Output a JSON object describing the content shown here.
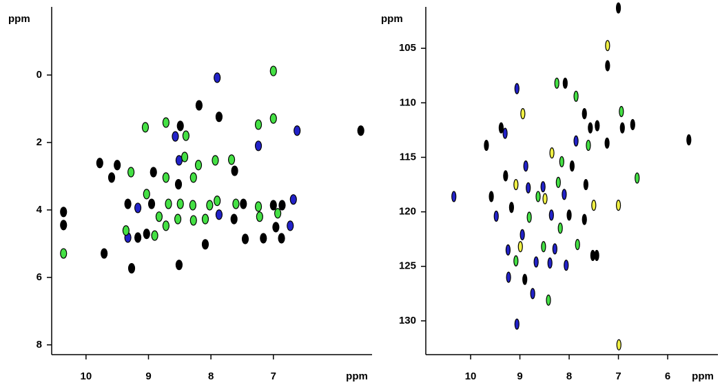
{
  "chart_data": [
    {
      "type": "scatter",
      "xlabel": "ppm",
      "ylabel": "ppm",
      "xlim": [
        10.55,
        5.42
      ],
      "ylim": [
        8.29,
        -2.02
      ],
      "xticks": [
        10,
        9,
        8,
        7
      ],
      "yticks": [
        0,
        2,
        4,
        6,
        8
      ],
      "series": [
        {
          "color": "#000000",
          "x": [
            5.6,
            7.87,
            8.19,
            8.49,
            7.62,
            9.5,
            9.59,
            9.78,
            8.92,
            8.52,
            8.95,
            7.48,
            7.0,
            6.86,
            9.33,
            7.63,
            6.96,
            9.03,
            9.17,
            7.45,
            7.16,
            6.87,
            10.36,
            10.36,
            9.71,
            9.27,
            8.51,
            8.09
          ],
          "y": [
            1.65,
            1.24,
            0.9,
            1.51,
            2.84,
            2.67,
            3.04,
            2.61,
            2.88,
            3.24,
            3.82,
            3.82,
            3.86,
            3.86,
            3.82,
            4.27,
            4.51,
            4.71,
            4.82,
            4.86,
            4.84,
            4.84,
            4.06,
            4.45,
            5.29,
            5.73,
            5.63,
            5.02
          ]
        },
        {
          "color": "#2222c8",
          "x": [
            7.9,
            6.62,
            7.24,
            8.57,
            8.51,
            6.68,
            9.17,
            7.87,
            6.73,
            9.33
          ],
          "y": [
            0.08,
            1.65,
            2.1,
            1.82,
            2.53,
            3.69,
            3.94,
            4.14,
            4.47,
            4.82
          ]
        },
        {
          "color": "#44e044",
          "x": [
            7.0,
            7.0,
            7.24,
            9.05,
            8.72,
            8.4,
            8.42,
            8.2,
            7.93,
            7.67,
            9.28,
            8.28,
            8.72,
            9.03,
            8.68,
            8.49,
            8.29,
            8.02,
            7.9,
            7.6,
            7.24,
            8.83,
            8.53,
            8.28,
            8.09,
            6.93,
            7.22,
            8.72,
            8.9,
            9.36,
            10.36
          ],
          "y": [
            -0.12,
            1.29,
            1.47,
            1.55,
            1.41,
            1.8,
            2.43,
            2.67,
            2.53,
            2.51,
            2.88,
            3.04,
            3.04,
            3.53,
            3.82,
            3.82,
            3.86,
            3.86,
            3.73,
            3.82,
            3.9,
            4.2,
            4.27,
            4.31,
            4.27,
            4.1,
            4.2,
            4.47,
            4.76,
            4.61,
            5.29
          ]
        }
      ]
    },
    {
      "type": "scatter",
      "xlabel": "ppm",
      "ylabel": "ppm",
      "xlim": [
        10.91,
        4.98
      ],
      "ylim": [
        133.1,
        101.2
      ],
      "xticks": [
        10,
        9,
        8,
        7,
        6
      ],
      "yticks": [
        105,
        110,
        115,
        120,
        125,
        130
      ],
      "series": [
        {
          "color": "#000000",
          "x": [
            7.22,
            7.0,
            8.08,
            7.69,
            7.57,
            7.43,
            6.71,
            6.92,
            9.38,
            9.68,
            7.23,
            5.57,
            7.94,
            9.29,
            7.66,
            9.58,
            9.17,
            8.0,
            7.69,
            7.52,
            7.44,
            8.9
          ],
          "y": [
            106.6,
            101.3,
            108.2,
            111.0,
            112.3,
            112.1,
            112.0,
            112.3,
            112.3,
            113.9,
            113.7,
            113.4,
            115.8,
            116.7,
            117.5,
            118.6,
            119.6,
            120.3,
            120.7,
            124.0,
            124.0,
            126.2
          ]
        },
        {
          "color": "#2222c8",
          "x": [
            9.06,
            9.3,
            7.86,
            8.88,
            8.83,
            8.53,
            10.34,
            8.1,
            9.48,
            8.36,
            8.95,
            9.24,
            8.29,
            8.67,
            8.39,
            8.06,
            9.23,
            8.74,
            9.06
          ],
          "y": [
            108.7,
            112.8,
            113.5,
            115.8,
            117.8,
            117.7,
            118.6,
            118.4,
            120.4,
            120.3,
            122.1,
            123.5,
            123.4,
            124.6,
            124.7,
            124.9,
            126.0,
            127.5,
            130.3
          ]
        },
        {
          "color": "#44e044",
          "x": [
            8.25,
            7.86,
            6.94,
            7.61,
            8.15,
            6.62,
            8.22,
            8.63,
            8.81,
            8.18,
            8.52,
            7.83,
            9.08,
            8.42
          ],
          "y": [
            108.2,
            109.4,
            110.8,
            113.9,
            115.4,
            116.9,
            117.3,
            118.6,
            120.5,
            121.5,
            123.2,
            123.0,
            124.5,
            128.1
          ]
        },
        {
          "color": "#f0f044",
          "x": [
            7.22,
            8.94,
            8.35,
            9.08,
            8.49,
            7.5,
            7.0,
            8.99,
            6.99
          ],
          "y": [
            104.75,
            111.0,
            114.6,
            117.5,
            118.8,
            119.4,
            119.4,
            123.2,
            132.2
          ]
        }
      ]
    }
  ]
}
